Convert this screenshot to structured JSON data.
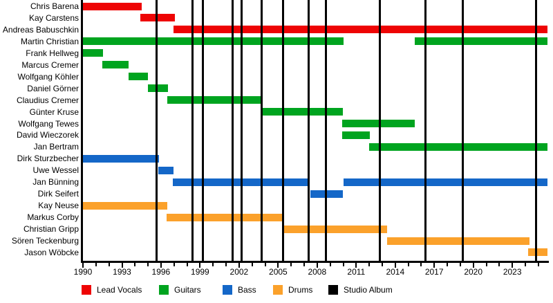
{
  "chart_data": {
    "type": "gantt",
    "description": "Band member timeline with studio album release lines",
    "x_axis": {
      "start": 1990,
      "end": 2025.7,
      "major_ticks": [
        1990,
        1993,
        1996,
        1999,
        2002,
        2005,
        2008,
        2011,
        2014,
        2017,
        2020,
        2023
      ],
      "minor_tick_interval": 1,
      "grid": false
    },
    "colors": {
      "vocals": "#ee0404",
      "guitars": "#00a41f",
      "bass": "#1467c8",
      "drums": "#fba12b",
      "album": "#000000"
    },
    "members": [
      {
        "name": "Chris Barena",
        "role": "vocals",
        "spans": [
          [
            1990,
            1994.5
          ]
        ]
      },
      {
        "name": "Kay Carstens",
        "role": "vocals",
        "spans": [
          [
            1994.4,
            1997.05
          ]
        ]
      },
      {
        "name": "Andreas Babuschkin",
        "role": "vocals",
        "spans": [
          [
            1996.95,
            2025.7
          ]
        ]
      },
      {
        "name": "Martin Christian",
        "role": "guitars",
        "spans": [
          [
            1990,
            2010.0
          ],
          [
            2015.5,
            2025.7
          ]
        ]
      },
      {
        "name": "Frank Hellweg",
        "role": "guitars",
        "spans": [
          [
            1990,
            1991.55
          ]
        ]
      },
      {
        "name": "Marcus Cremer",
        "role": "guitars",
        "spans": [
          [
            1991.5,
            1993.5
          ]
        ]
      },
      {
        "name": "Wolfgang Köhler",
        "role": "guitars",
        "spans": [
          [
            1993.5,
            1995.0
          ]
        ]
      },
      {
        "name": "Daniel Görner",
        "role": "guitars",
        "spans": [
          [
            1995.0,
            1996.55
          ]
        ]
      },
      {
        "name": "Claudius Cremer",
        "role": "guitars",
        "spans": [
          [
            1996.5,
            2003.75
          ]
        ]
      },
      {
        "name": "Günter Kruse",
        "role": "guitars",
        "spans": [
          [
            2003.75,
            2010.0
          ]
        ]
      },
      {
        "name": "Wolfgang Tewes",
        "role": "guitars",
        "spans": [
          [
            2009.9,
            2015.5
          ]
        ]
      },
      {
        "name": "David Wieczorek",
        "role": "guitars",
        "spans": [
          [
            2009.9,
            2012.05
          ]
        ]
      },
      {
        "name": "Jan Bertram",
        "role": "guitars",
        "spans": [
          [
            2012.0,
            2025.7
          ]
        ]
      },
      {
        "name": "Dirk Sturzbecher",
        "role": "bass",
        "spans": [
          [
            1990,
            1995.85
          ]
        ]
      },
      {
        "name": "Uwe Wessel",
        "role": "bass",
        "spans": [
          [
            1995.8,
            1996.95
          ]
        ]
      },
      {
        "name": "Jan Bünning",
        "role": "bass",
        "spans": [
          [
            1996.9,
            2007.4
          ],
          [
            2010.0,
            2025.7
          ]
        ]
      },
      {
        "name": "Dirk Seifert",
        "role": "bass",
        "spans": [
          [
            2007.5,
            2010.0
          ]
        ]
      },
      {
        "name": "Kay Neuse",
        "role": "drums",
        "spans": [
          [
            1990,
            1996.5
          ]
        ]
      },
      {
        "name": "Markus Corby",
        "role": "drums",
        "spans": [
          [
            1996.4,
            2005.45
          ]
        ]
      },
      {
        "name": "Christian Gripp",
        "role": "drums",
        "spans": [
          [
            2005.4,
            2013.4
          ]
        ]
      },
      {
        "name": "Sören Teckenburg",
        "role": "drums",
        "spans": [
          [
            2013.35,
            2024.3
          ]
        ]
      },
      {
        "name": "Jason Wöbcke",
        "role": "drums",
        "spans": [
          [
            2024.2,
            2025.7
          ]
        ]
      }
    ],
    "albums": [
      1995.65,
      1998.4,
      1999.2,
      2001.5,
      2002.2,
      2003.75,
      2005.4,
      2007.35,
      2008.65,
      2012.8,
      2016.3,
      2019.2,
      2024.8
    ],
    "legend": [
      {
        "label": "Lead Vocals",
        "role": "vocals"
      },
      {
        "label": "Guitars",
        "role": "guitars"
      },
      {
        "label": "Bass",
        "role": "bass"
      },
      {
        "label": "Drums",
        "role": "drums"
      },
      {
        "label": "Studio Album",
        "role": "album"
      }
    ],
    "legend_x_positions": [
      118,
      230,
      322,
      395,
      475
    ]
  }
}
